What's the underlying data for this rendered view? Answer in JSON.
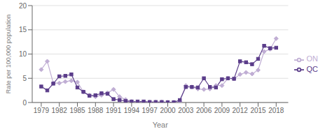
{
  "chart_data": {
    "type": "line",
    "xlabel": "Year",
    "ylabel": "Rate per 100,000 population",
    "x": [
      1979,
      1980,
      1981,
      1982,
      1983,
      1984,
      1985,
      1986,
      1987,
      1988,
      1989,
      1990,
      1991,
      1992,
      1993,
      1994,
      1995,
      1996,
      1997,
      1998,
      1999,
      2000,
      2001,
      2002,
      2003,
      2004,
      2005,
      2006,
      2007,
      2008,
      2009,
      2010,
      2011,
      2012,
      2013,
      2014,
      2015,
      2016,
      2017,
      2018
    ],
    "series": [
      {
        "name": "ON",
        "color": "#c0aed4",
        "marker": "diamond",
        "values": [
          6.8,
          8.5,
          4.0,
          4.0,
          4.3,
          4.5,
          4.2,
          2.2,
          1.5,
          1.2,
          1.5,
          2.0,
          2.7,
          1.2,
          0.6,
          0.2,
          0.15,
          0.1,
          0.1,
          0.1,
          0.1,
          0.05,
          0.05,
          0.2,
          3.5,
          3.2,
          2.8,
          2.7,
          2.8,
          3.5,
          3.5,
          5.0,
          4.9,
          5.8,
          6.2,
          5.9,
          6.7,
          10.5,
          11.0,
          13.2
        ]
      },
      {
        "name": "QC",
        "color": "#5b3d8a",
        "marker": "square",
        "values": [
          3.3,
          2.5,
          3.9,
          5.4,
          5.5,
          5.8,
          3.1,
          2.2,
          1.4,
          1.5,
          1.9,
          1.8,
          0.7,
          0.5,
          0.3,
          0.2,
          0.2,
          0.2,
          0.1,
          0.1,
          0.1,
          0.05,
          0.05,
          0.5,
          3.2,
          3.2,
          3.1,
          5.0,
          3.2,
          3.1,
          4.8,
          5.0,
          4.9,
          8.5,
          8.3,
          7.9,
          9.0,
          11.7,
          11.2,
          11.3
        ]
      }
    ],
    "xlim": [
      1977.5,
      2020
    ],
    "xticks": [
      1979,
      1982,
      1985,
      1988,
      1991,
      1994,
      1997,
      2000,
      2003,
      2006,
      2009,
      2012,
      2015,
      2018
    ],
    "ylim": [
      0,
      20
    ],
    "yticks": [
      0,
      5,
      10,
      15,
      20
    ],
    "grid": true,
    "legend": "right"
  }
}
